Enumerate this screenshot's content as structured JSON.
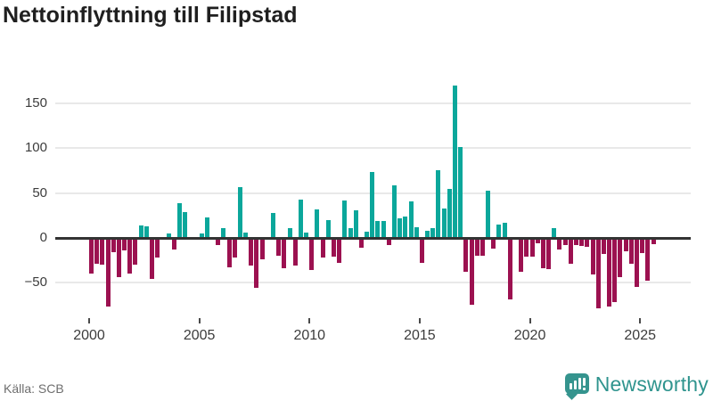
{
  "title": "Nettoinflyttning till Filipstad",
  "source": "Källa: SCB",
  "logo": {
    "text": "Newsworthy",
    "icon": "bar-chart-speech-bubble"
  },
  "colors": {
    "positive_bar": "#0ba79b",
    "negative_bar": "#9c1150",
    "zero_axis": "#333333",
    "gridline": "#e9e9e9",
    "logo_teal": "#2f948e"
  },
  "chart_data": {
    "type": "bar",
    "title": "Nettoinflyttning till Filipstad",
    "xlabel": "",
    "ylabel": "",
    "grid": "horizontal",
    "start_year": 2000,
    "start_quarter": 1,
    "frequency": "quarterly",
    "x_tick_years": [
      2000,
      2005,
      2010,
      2015,
      2020,
      2025
    ],
    "y_ticks": [
      150,
      100,
      50,
      0,
      -50
    ],
    "ylim": [
      -87,
      180
    ],
    "values": [
      -40,
      -29,
      -30,
      -76,
      -16,
      -44,
      -14,
      -40,
      -30,
      14,
      13,
      -46,
      -22,
      0,
      5,
      -13,
      39,
      29,
      0,
      0,
      5,
      23,
      0,
      -8,
      11,
      -33,
      -22,
      57,
      6,
      -31,
      -56,
      -24,
      0,
      28,
      -20,
      -34,
      11,
      -31,
      43,
      6,
      -36,
      32,
      -22,
      20,
      -21,
      -28,
      42,
      11,
      31,
      -11,
      7,
      73,
      19,
      19,
      -8,
      59,
      22,
      24,
      41,
      12,
      -28,
      8,
      11,
      75,
      33,
      55,
      170,
      101,
      -38,
      -74,
      -20,
      -20,
      53,
      -12,
      15,
      17,
      -68,
      0,
      -38,
      -21,
      -21,
      -6,
      -34,
      -35,
      11,
      -13,
      -8,
      -29,
      -8,
      -9,
      -10,
      -41,
      -78,
      -18,
      -76,
      -71,
      -44,
      -15,
      -29,
      -55,
      -17,
      -48,
      -7
    ]
  }
}
